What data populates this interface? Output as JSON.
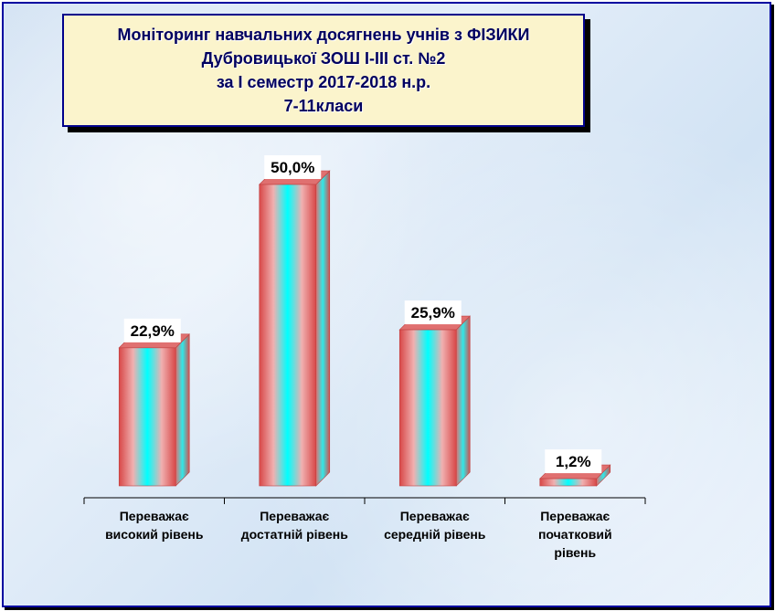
{
  "title_lines": [
    "Моніторинг навчальних досягнень учнів з  ФІЗИКИ",
    "Дубровицької ЗОШ І-ІІІ ст. №2",
    "за І семестр 2017-2018 н.р.",
    "7-11класи"
  ],
  "chart_data": {
    "type": "bar",
    "categories": [
      [
        "Переважає",
        "високий рівень"
      ],
      [
        "Переважає",
        "достатній рівень"
      ],
      [
        "Переважає",
        "середній рівень"
      ],
      [
        "Переважає",
        "початковий",
        "рівень"
      ]
    ],
    "values": [
      22.9,
      50.0,
      25.9,
      1.2
    ],
    "data_labels": [
      "22,9%",
      "50,0%",
      "25,9%",
      "1,2%"
    ],
    "ylim": [
      0,
      50
    ],
    "grid": false,
    "legend": "none",
    "colors": {
      "edge": "#e05050",
      "center": "#00ffff",
      "side": "#40e0e0",
      "top": "#e07070"
    }
  }
}
